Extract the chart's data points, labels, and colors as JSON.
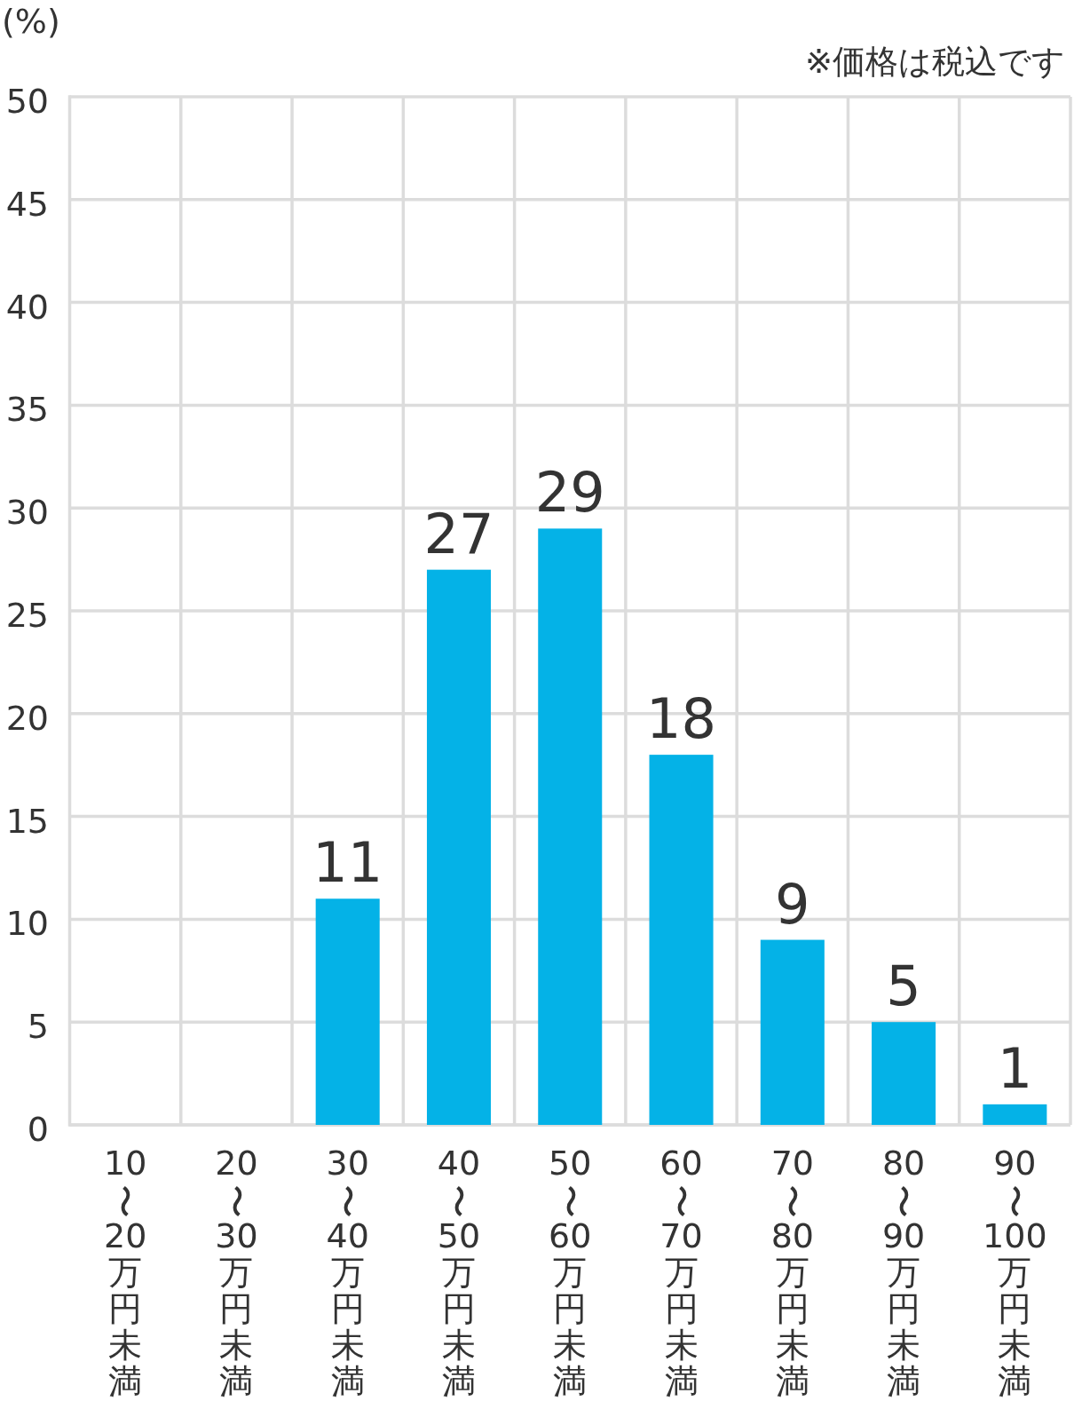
{
  "chart_data": {
    "type": "bar",
    "ylabel": "(%)",
    "annotations": [
      "※価格は税込です"
    ],
    "categories": [
      "10〜20万円未満",
      "20〜30万円未満",
      "30〜40万円未満",
      "40〜50万円未満",
      "50〜60万円未満",
      "60〜70万円未満",
      "70〜80万円未満",
      "80〜90万円未満",
      "90〜100万円未満"
    ],
    "values": [
      0,
      0,
      11,
      27,
      29,
      18,
      9,
      5,
      1
    ],
    "value_labels": [
      null,
      null,
      "11",
      "27",
      "29",
      "18",
      "9",
      "5",
      "1"
    ],
    "color": "#04b2e7",
    "ylim": [
      0,
      50
    ],
    "yticks": [
      0,
      5,
      10,
      15,
      20,
      25,
      30,
      35,
      40,
      45,
      50
    ],
    "grid": true
  }
}
